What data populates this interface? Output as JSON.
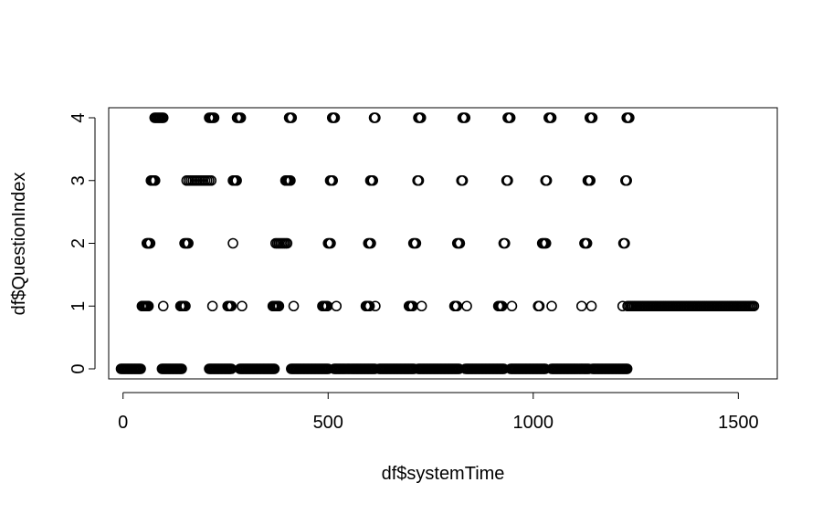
{
  "chart_data": {
    "type": "scatter",
    "title": "",
    "xlabel": "df$systemTime",
    "ylabel": "df$QuestionIndex",
    "xlim": [
      -35,
      1595
    ],
    "ylim": [
      -0.16,
      4.16
    ],
    "x_ticks": [
      0,
      500,
      1000,
      1500
    ],
    "x_tick_labels": [
      "0",
      "500",
      "1000",
      "1500"
    ],
    "y_ticks": [
      0,
      1,
      2,
      3,
      4
    ],
    "y_tick_labels": [
      "0",
      "1",
      "2",
      "3",
      "4"
    ],
    "grid": false,
    "legend": "none",
    "marker": "open-circle",
    "marker_color": "#000000",
    "series": [
      {
        "ranges": [
          [
            -5,
            45
          ],
          [
            95,
            145
          ],
          [
            210,
            265
          ],
          [
            285,
            370
          ],
          [
            410,
            500
          ],
          [
            515,
            615
          ],
          [
            625,
            710
          ],
          [
            720,
            820
          ],
          [
            835,
            930
          ],
          [
            945,
            1030
          ],
          [
            1045,
            1135
          ],
          [
            1145,
            1230
          ]
        ],
        "points": [
          [
            46,
            1
          ],
          [
            48,
            1
          ],
          [
            50,
            1
          ],
          [
            52,
            1
          ],
          [
            55,
            1
          ],
          [
            57,
            1
          ],
          [
            60,
            1
          ],
          [
            62,
            1
          ],
          [
            58,
            2
          ],
          [
            60,
            2
          ],
          [
            62,
            2
          ],
          [
            64,
            2
          ],
          [
            66,
            2
          ],
          [
            68,
            3
          ],
          [
            70,
            3
          ],
          [
            72,
            3
          ],
          [
            74,
            3
          ],
          [
            76,
            3
          ],
          [
            78,
            3
          ],
          [
            77,
            4
          ],
          [
            80,
            4
          ],
          [
            83,
            4
          ],
          [
            86,
            4
          ],
          [
            89,
            4
          ],
          [
            92,
            4
          ],
          [
            95,
            4
          ],
          [
            98,
            4
          ],
          [
            98,
            1
          ],
          [
            140,
            1
          ],
          [
            143,
            1
          ],
          [
            146,
            1
          ],
          [
            149,
            1
          ],
          [
            152,
            1
          ],
          [
            150,
            2
          ],
          [
            153,
            2
          ],
          [
            156,
            2
          ],
          [
            159,
            2
          ],
          [
            155,
            3
          ],
          [
            160,
            3
          ],
          [
            165,
            3
          ],
          [
            170,
            3
          ],
          [
            175,
            3
          ],
          [
            180,
            3
          ],
          [
            185,
            3
          ],
          [
            190,
            3
          ],
          [
            195,
            3
          ],
          [
            200,
            3
          ],
          [
            205,
            3
          ],
          [
            210,
            3
          ],
          [
            215,
            3
          ],
          [
            210,
            4
          ],
          [
            213,
            4
          ],
          [
            216,
            4
          ],
          [
            219,
            4
          ],
          [
            222,
            4
          ],
          [
            218,
            1
          ],
          [
            255,
            1
          ],
          [
            258,
            1
          ],
          [
            261,
            1
          ],
          [
            264,
            1
          ],
          [
            268,
            2
          ],
          [
            268,
            3
          ],
          [
            271,
            3
          ],
          [
            274,
            3
          ],
          [
            277,
            3
          ],
          [
            278,
            4
          ],
          [
            281,
            4
          ],
          [
            284,
            4
          ],
          [
            287,
            4
          ],
          [
            290,
            1
          ],
          [
            365,
            1
          ],
          [
            368,
            1
          ],
          [
            371,
            1
          ],
          [
            374,
            1
          ],
          [
            377,
            1
          ],
          [
            380,
            1
          ],
          [
            372,
            2
          ],
          [
            376,
            2
          ],
          [
            380,
            2
          ],
          [
            384,
            2
          ],
          [
            388,
            2
          ],
          [
            392,
            2
          ],
          [
            396,
            2
          ],
          [
            400,
            2
          ],
          [
            396,
            3
          ],
          [
            399,
            3
          ],
          [
            402,
            3
          ],
          [
            405,
            3
          ],
          [
            408,
            3
          ],
          [
            405,
            4
          ],
          [
            408,
            4
          ],
          [
            411,
            4
          ],
          [
            416,
            1
          ],
          [
            486,
            1
          ],
          [
            489,
            1
          ],
          [
            492,
            1
          ],
          [
            495,
            1
          ],
          [
            498,
            1
          ],
          [
            500,
            2
          ],
          [
            503,
            2
          ],
          [
            506,
            2
          ],
          [
            505,
            3
          ],
          [
            508,
            3
          ],
          [
            511,
            3
          ],
          [
            510,
            4
          ],
          [
            513,
            4
          ],
          [
            516,
            4
          ],
          [
            520,
            1
          ],
          [
            592,
            1
          ],
          [
            595,
            1
          ],
          [
            598,
            1
          ],
          [
            601,
            1
          ],
          [
            598,
            2
          ],
          [
            601,
            2
          ],
          [
            604,
            2
          ],
          [
            603,
            3
          ],
          [
            606,
            3
          ],
          [
            609,
            3
          ],
          [
            612,
            4
          ],
          [
            615,
            4
          ],
          [
            615,
            1
          ],
          [
            697,
            1
          ],
          [
            700,
            1
          ],
          [
            703,
            1
          ],
          [
            706,
            1
          ],
          [
            708,
            2
          ],
          [
            711,
            2
          ],
          [
            714,
            2
          ],
          [
            718,
            3
          ],
          [
            721,
            3
          ],
          [
            720,
            4
          ],
          [
            723,
            4
          ],
          [
            726,
            4
          ],
          [
            728,
            1
          ],
          [
            808,
            1
          ],
          [
            811,
            1
          ],
          [
            814,
            1
          ],
          [
            815,
            2
          ],
          [
            818,
            2
          ],
          [
            821,
            2
          ],
          [
            825,
            3
          ],
          [
            828,
            3
          ],
          [
            828,
            4
          ],
          [
            831,
            4
          ],
          [
            834,
            4
          ],
          [
            838,
            1
          ],
          [
            915,
            1
          ],
          [
            918,
            1
          ],
          [
            921,
            1
          ],
          [
            924,
            1
          ],
          [
            928,
            2
          ],
          [
            931,
            2
          ],
          [
            935,
            3
          ],
          [
            938,
            3
          ],
          [
            938,
            4
          ],
          [
            941,
            4
          ],
          [
            944,
            4
          ],
          [
            948,
            1
          ],
          [
            1012,
            1
          ],
          [
            1015,
            1
          ],
          [
            1022,
            2
          ],
          [
            1025,
            2
          ],
          [
            1028,
            2
          ],
          [
            1031,
            2
          ],
          [
            1030,
            3
          ],
          [
            1033,
            3
          ],
          [
            1038,
            4
          ],
          [
            1041,
            4
          ],
          [
            1044,
            4
          ],
          [
            1045,
            1
          ],
          [
            1118,
            1
          ],
          [
            1125,
            2
          ],
          [
            1128,
            2
          ],
          [
            1131,
            2
          ],
          [
            1133,
            3
          ],
          [
            1136,
            3
          ],
          [
            1139,
            3
          ],
          [
            1138,
            4
          ],
          [
            1141,
            4
          ],
          [
            1144,
            4
          ],
          [
            1142,
            1
          ],
          [
            1218,
            1
          ],
          [
            1220,
            2
          ],
          [
            1223,
            2
          ],
          [
            1225,
            3
          ],
          [
            1228,
            3
          ],
          [
            1228,
            4
          ],
          [
            1231,
            4
          ],
          [
            1234,
            4
          ]
        ],
        "dense_runs": [
          {
            "y": 1,
            "from": 1230,
            "to": 1540,
            "step": 4
          }
        ]
      }
    ]
  }
}
